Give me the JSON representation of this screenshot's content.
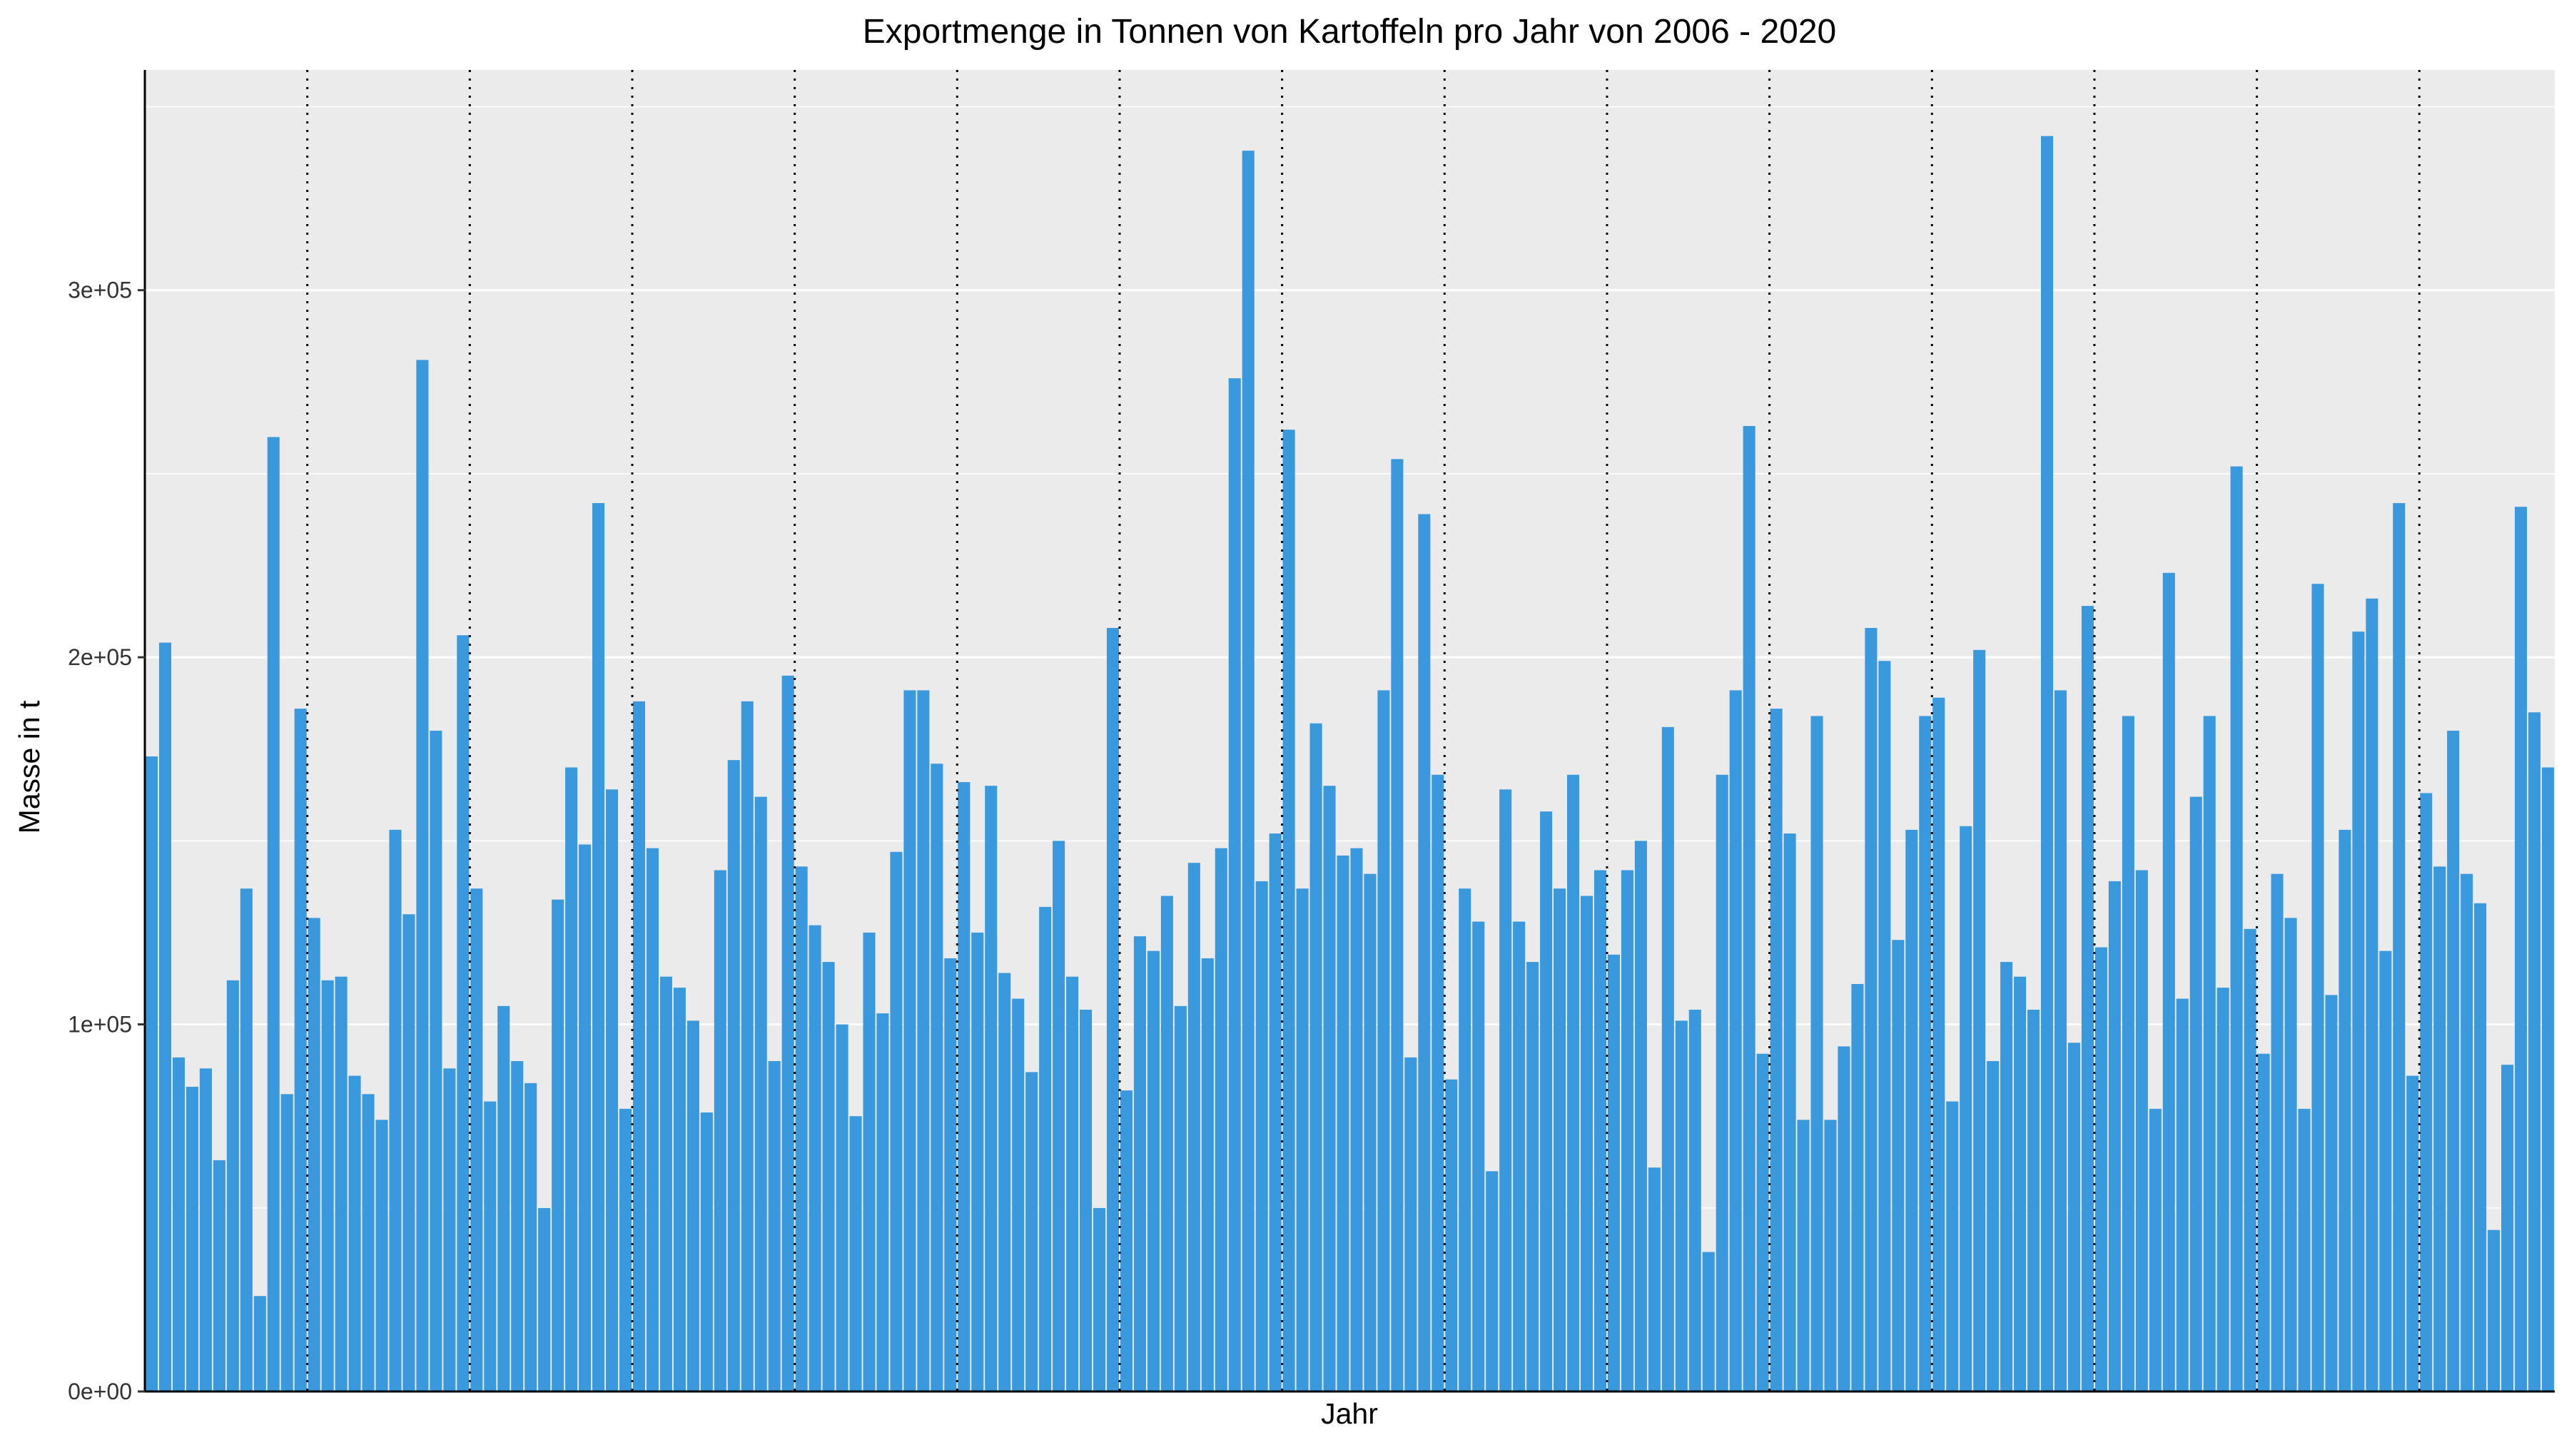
{
  "chart_data": {
    "type": "bar",
    "title": "Exportmenge in Tonnen von Kartoffeln pro Jahr von 2006 - 2020",
    "xlabel": "Jahr",
    "ylabel": "Masse in t",
    "ylim": [
      0,
      360000
    ],
    "y_ticks": [
      0,
      100000,
      200000,
      300000
    ],
    "y_tick_labels": [
      "0e+00",
      "1e+05",
      "2e+05",
      "3e+05"
    ],
    "x_tick_labels": [],
    "bar_color": "#3A99DC",
    "panel_color": "#EBEBEB",
    "grid": true,
    "legend": "none",
    "year_separators_after_bars": [
      12,
      24,
      36,
      48,
      60,
      72,
      84,
      96,
      108,
      120,
      132,
      144,
      156,
      168
    ],
    "values": [
      173000,
      204000,
      91000,
      83000,
      88000,
      63000,
      112000,
      137000,
      26000,
      260000,
      81000,
      186000,
      129000,
      112000,
      113000,
      86000,
      81000,
      74000,
      153000,
      130000,
      281000,
      180000,
      88000,
      206000,
      137000,
      79000,
      105000,
      90000,
      84000,
      50000,
      134000,
      170000,
      149000,
      242000,
      164000,
      77000,
      188000,
      148000,
      113000,
      110000,
      101000,
      76000,
      142000,
      172000,
      188000,
      162000,
      90000,
      195000,
      143000,
      127000,
      117000,
      100000,
      75000,
      125000,
      103000,
      147000,
      191000,
      191000,
      171000,
      118000,
      166000,
      125000,
      165000,
      114000,
      107000,
      87000,
      132000,
      150000,
      113000,
      104000,
      50000,
      208000,
      82000,
      124000,
      120000,
      135000,
      105000,
      144000,
      118000,
      148000,
      276000,
      338000,
      139000,
      152000,
      262000,
      137000,
      182000,
      165000,
      146000,
      148000,
      141000,
      191000,
      254000,
      91000,
      239000,
      168000,
      85000,
      137000,
      128000,
      60000,
      164000,
      128000,
      117000,
      158000,
      137000,
      168000,
      135000,
      142000,
      119000,
      142000,
      150000,
      61000,
      181000,
      101000,
      104000,
      38000,
      168000,
      191000,
      263000,
      92000,
      186000,
      152000,
      74000,
      184000,
      74000,
      94000,
      111000,
      208000,
      199000,
      123000,
      153000,
      184000,
      189000,
      79000,
      154000,
      202000,
      90000,
      117000,
      113000,
      104000,
      342000,
      191000,
      95000,
      214000,
      121000,
      139000,
      184000,
      142000,
      77000,
      223000,
      107000,
      162000,
      184000,
      110000,
      252000,
      126000,
      92000,
      141000,
      129000,
      77000,
      220000,
      108000,
      153000,
      207000,
      216000,
      120000,
      242000,
      86000,
      163000,
      143000,
      180000,
      141000,
      133000,
      44000,
      89000,
      241000,
      185000,
      170000
    ]
  }
}
